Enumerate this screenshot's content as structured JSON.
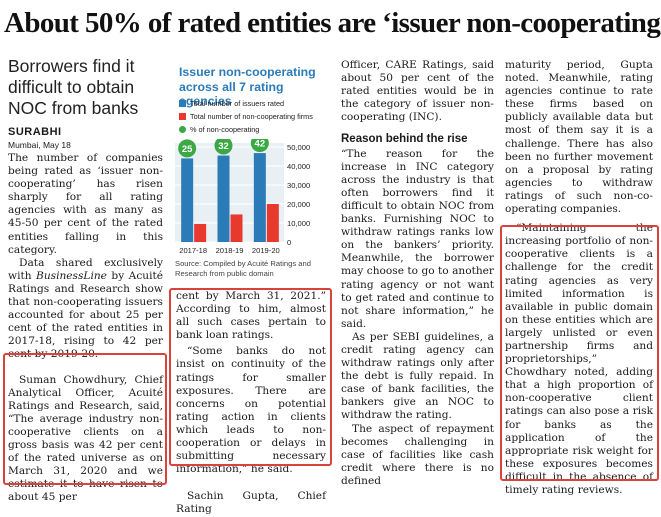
{
  "headline": "About 50% of rated entities are ‘issuer non-cooperating’",
  "subheadline": "Borrowers find it difficult to obtain NOC from banks",
  "byline": "SURABHI",
  "dateline": "Mumbai, May 18",
  "col1": {
    "p1": "The number of companies being rated as ‘issuer non-cooperating’ has risen sharply for all rating agencies with as many as 45-50 per cent of the rated entities falling in this category.",
    "p2a": "Data shared exclusively with ",
    "p2i": "BusinessLine",
    "p2b": " by Acuité Ratings and Research show that non-cooperating issuers accounted for about 25 per cent of the rated entities in 2017-18, rising to 42 per cent by 2019-20.",
    "p3": "Suman Chowdhury, Chief Analytical Officer, Acuité Ratings and Research, said, “The average industry non-cooperative clients on a gross basis was 42 per cent of the rated universe as on March 31, 2020 and we estimate it to have risen to about 45 per"
  },
  "col2": {
    "p1": "cent by March 31, 2021.” According to him, almost all such cases pertain to bank loan ratings.",
    "p2": "“Some banks do not insist on continuity of the ratings for smaller exposures. There are concerns on potential rating action in clients which leads to non-cooperation or delays in submitting necessary information,” he said.",
    "p3": "Sachin Gupta, Chief Rating"
  },
  "col3": {
    "p1": "Officer, CARE Ratings, said about 50 per cent of the rated entities would be in the category of issuer non-cooperating (INC).",
    "subhead": "Reason behind the rise",
    "p2": "“The reason for the increase in INC category across the industry is that often borrowers find it difficult to obtain NOC from banks. Furnishing NOC to withdraw ratings ranks low on the bankers’ priority. Meanwhile, the borrower may choose to go to another rating agency or not want to get rated and continue to not share information,” he said.",
    "p3": "As per SEBI guidelines, a credit rating agency can withdraw ratings only after the debt is fully repaid. In case of bank facilities, the bankers give an NOC to withdraw the rating.",
    "p4": "The aspect of repayment becomes challenging in case of facilities like cash credit where there is no defined"
  },
  "col4": {
    "p1": "maturity period, Gupta noted. Meanwhile, rating agencies continue to rate these firms based on publicly available data but most of them say it is a challenge. There has also been no further movement on a proposal by rating agencies to withdraw ratings of such non-co-operating companies.",
    "p2": "“Maintaining the increasing portfolio of non-cooperative clients is a challenge for the credit rating agencies as very limited information is available in public domain on these entities which are largely unlisted or even partnership firms and proprietorships,” Chowdhary noted, adding that a high proportion of non-cooperative client ratings can also pose a risk for banks as the application of the appropriate risk weight for these exposures becomes difficult in the absence of timely rating reviews."
  },
  "chart": {
    "title": "Issuer non-cooperating across all 7 rating agencies",
    "legend_total": "Total number of issuers rated",
    "legend_nonco": "Total number of non-cooperating firms",
    "legend_pct": "% of non-cooperating",
    "source": "Source: Compiled by Acuité Ratings and Research from public domain",
    "colors": {
      "total": "#2b7bb9",
      "nonco": "#e8392f",
      "pct": "#3aa843",
      "bg": "#e9f0f4",
      "title": "#2b7bb9"
    }
  },
  "chart_data": {
    "type": "bar",
    "categories": [
      "2017-18",
      "2018-19",
      "2019-20"
    ],
    "series": [
      {
        "name": "Total number of issuers rated",
        "values": [
          44000,
          45500,
          46800
        ]
      },
      {
        "name": "Total number of non-cooperating firms",
        "values": [
          9500,
          14500,
          20000
        ]
      },
      {
        "name": "% of non-cooperating",
        "values": [
          25,
          32,
          42
        ]
      }
    ],
    "yticks": [
      "50,000",
      "40,000",
      "30,000",
      "20,000",
      "10,000",
      "0"
    ],
    "ylim": [
      0,
      50000
    ]
  }
}
